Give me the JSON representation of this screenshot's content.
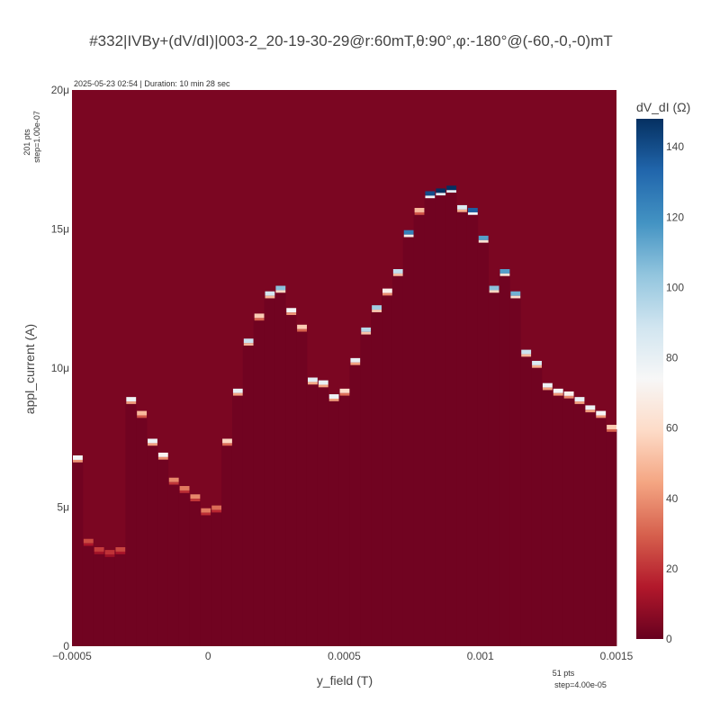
{
  "chart_data": {
    "type": "heatmap",
    "title": "#332|IVBy+(dV/dI)|003-2_20-19-30-29@r:60mT,θ:90°,φ:-180°@(-60,-0,-0)mT",
    "subtitle": "2025-05-23 02:54 | Duration: 10 min 28 sec",
    "xlabel": "y_field (T)",
    "ylabel": "appl_current (A)",
    "x_pts_label": "51 pts",
    "x_step_label": "step=4.00e-05",
    "y_pts_label": "201 pts",
    "y_step_label": "step=1.00e-07",
    "xlim": [
      -0.0005,
      0.0015
    ],
    "ylim": [
      0,
      2e-05
    ],
    "x_ticks": [
      {
        "value": -0.0005,
        "label": "−0.0005"
      },
      {
        "value": 0,
        "label": "0"
      },
      {
        "value": 0.0005,
        "label": "0.0005"
      },
      {
        "value": 0.001,
        "label": "0.001"
      },
      {
        "value": 0.0015,
        "label": "0.0015"
      }
    ],
    "y_ticks": [
      {
        "value": 0,
        "label": "0"
      },
      {
        "value": 5e-06,
        "label": "5μ"
      },
      {
        "value": 1e-05,
        "label": "10μ"
      },
      {
        "value": 1.5e-05,
        "label": "15μ"
      },
      {
        "value": 2e-05,
        "label": "20μ"
      }
    ],
    "colorbar": {
      "title": "dV_dI (Ω)",
      "min": 0,
      "max": 148,
      "ticks": [
        {
          "value": 0,
          "label": "0"
        },
        {
          "value": 20,
          "label": "20"
        },
        {
          "value": 40,
          "label": "40"
        },
        {
          "value": 60,
          "label": "60"
        },
        {
          "value": 80,
          "label": "80"
        },
        {
          "value": 100,
          "label": "100"
        },
        {
          "value": 120,
          "label": "120"
        },
        {
          "value": 140,
          "label": "140"
        }
      ],
      "colorscale": [
        "#67001f",
        "#b2182b",
        "#d6604d",
        "#f4a582",
        "#fddbc7",
        "#f7f7f7",
        "#d1e5f0",
        "#92c5de",
        "#4393c3",
        "#2166ac",
        "#053061"
      ]
    },
    "x_start": -0.0005,
    "x_step": 4e-05,
    "background_value": 4,
    "inner_value": 2,
    "switching_current": [
      6.7e-06,
      3.7e-06,
      3.4e-06,
      3.3e-06,
      3.4e-06,
      8.8e-06,
      8.3e-06,
      7.3e-06,
      6.8e-06,
      5.9e-06,
      5.6e-06,
      5.3e-06,
      4.8e-06,
      4.9e-06,
      7.3e-06,
      9.1e-06,
      1.09e-05,
      1.18e-05,
      1.26e-05,
      1.28e-05,
      1.2e-05,
      1.14e-05,
      9.5e-06,
      9.4e-06,
      8.9e-06,
      9.1e-06,
      1.02e-05,
      1.13e-05,
      1.21e-05,
      1.27e-05,
      1.34e-05,
      1.48e-05,
      1.56e-05,
      1.62e-05,
      1.63e-05,
      1.64e-05,
      1.57e-05,
      1.56e-05,
      1.46e-05,
      1.28e-05,
      1.34e-05,
      1.26e-05,
      1.05e-05,
      1.01e-05,
      9.3e-06,
      9.1e-06,
      9e-06,
      8.8e-06,
      8.5e-06,
      8.3e-06,
      7.8e-06
    ],
    "peak_value": [
      75,
      25,
      22,
      20,
      24,
      78,
      50,
      78,
      72,
      38,
      35,
      38,
      35,
      32,
      58,
      80,
      90,
      55,
      88,
      105,
      75,
      55,
      82,
      80,
      78,
      60,
      80,
      95,
      100,
      70,
      92,
      125,
      50,
      140,
      148,
      148,
      85,
      135,
      115,
      105,
      115,
      110,
      90,
      85,
      78,
      75,
      70,
      80,
      78,
      75,
      55
    ]
  }
}
